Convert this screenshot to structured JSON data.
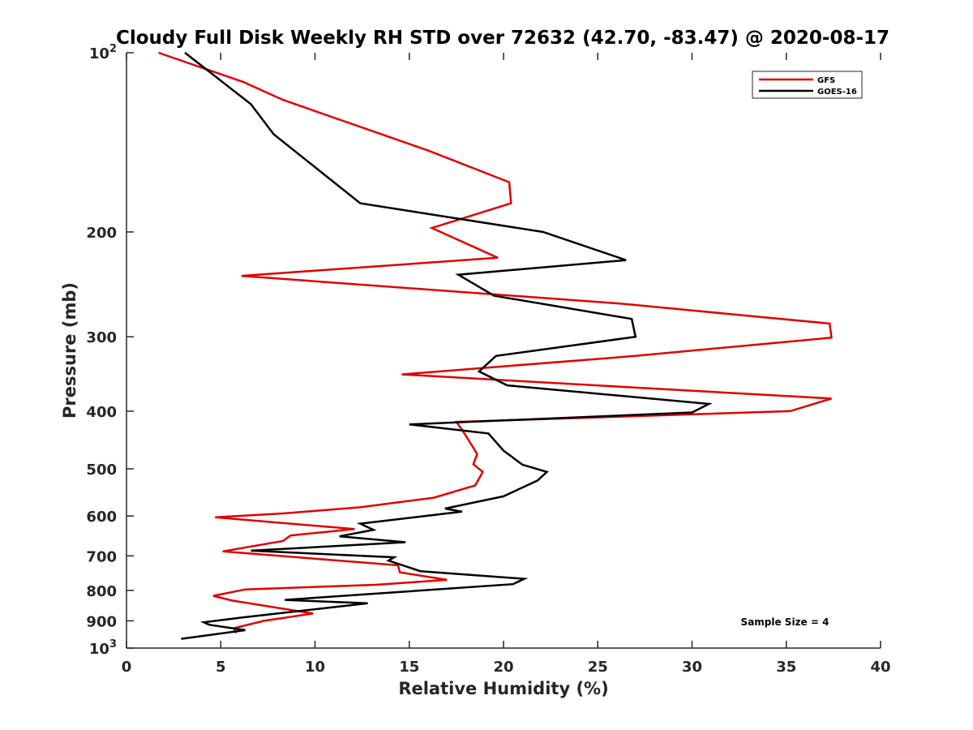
{
  "chart_data": {
    "type": "line",
    "title": "Cloudy Full Disk Weekly RH STD over 72632 (42.70, -83.47) @ 2020-08-17",
    "xlabel": "Relative Humidity (%)",
    "ylabel": "Pressure (mb)",
    "xlim": [
      0,
      40
    ],
    "ylim": [
      100,
      1000
    ],
    "yscale": "log",
    "y_reversed": true,
    "grid": false,
    "legend_position": "top-right",
    "x_ticks": [
      0,
      5,
      10,
      15,
      20,
      25,
      30,
      35,
      40
    ],
    "y_ticks": [
      {
        "value": 100,
        "label": "10",
        "exp": "2"
      },
      {
        "value": 200,
        "label": "200"
      },
      {
        "value": 300,
        "label": "300"
      },
      {
        "value": 400,
        "label": "400"
      },
      {
        "value": 500,
        "label": "500"
      },
      {
        "value": 600,
        "label": "600"
      },
      {
        "value": 700,
        "label": "700"
      },
      {
        "value": 800,
        "label": "800"
      },
      {
        "value": 900,
        "label": "900"
      },
      {
        "value": 1000,
        "label": "10",
        "exp": "3"
      }
    ],
    "annotation": "Sample Size = 4",
    "series": [
      {
        "name": "GFS",
        "color": "#e00000",
        "points": [
          [
            1.7,
            100
          ],
          [
            6.2,
            112
          ],
          [
            8.3,
            120
          ],
          [
            16,
            146
          ],
          [
            20.3,
            165
          ],
          [
            20.4,
            179
          ],
          [
            16.2,
            197
          ],
          [
            19.7,
            221
          ],
          [
            6.1,
            237
          ],
          [
            26.3,
            264
          ],
          [
            37.3,
            285
          ],
          [
            37.4,
            301
          ],
          [
            27,
            323
          ],
          [
            14.6,
            347
          ],
          [
            37.4,
            381
          ],
          [
            35.2,
            400
          ],
          [
            17.5,
            417
          ],
          [
            17.8,
            430
          ],
          [
            18.2,
            450
          ],
          [
            18.6,
            472
          ],
          [
            18.4,
            491
          ],
          [
            18.9,
            506
          ],
          [
            18.5,
            533
          ],
          [
            16.3,
            559
          ],
          [
            12.4,
            580
          ],
          [
            8.3,
            594
          ],
          [
            4.7,
            603
          ],
          [
            12.1,
            631
          ],
          [
            8.7,
            647
          ],
          [
            8.3,
            661
          ],
          [
            5.1,
            688
          ],
          [
            14.4,
            726
          ],
          [
            14.5,
            746
          ],
          [
            17,
            768
          ],
          [
            13.2,
            783
          ],
          [
            6.3,
            797
          ],
          [
            4.6,
            817
          ],
          [
            5.6,
            832
          ],
          [
            9.9,
            875
          ],
          [
            7.3,
            900
          ],
          [
            5.7,
            926
          ],
          [
            5.8,
            944
          ]
        ]
      },
      {
        "name": "GOES-16",
        "color": "#000000",
        "points": [
          [
            3.1,
            100
          ],
          [
            6.6,
            122
          ],
          [
            7.8,
            137
          ],
          [
            12.4,
            179
          ],
          [
            22.1,
            200
          ],
          [
            26.5,
            223
          ],
          [
            17.6,
            236
          ],
          [
            19.5,
            256
          ],
          [
            26.8,
            280
          ],
          [
            27,
            300
          ],
          [
            19.6,
            323
          ],
          [
            18.7,
            343
          ],
          [
            20.2,
            362
          ],
          [
            30.9,
            389
          ],
          [
            30,
            402
          ],
          [
            15,
            421
          ],
          [
            19.2,
            436
          ],
          [
            20,
            466
          ],
          [
            21,
            492
          ],
          [
            22.3,
            506
          ],
          [
            21.8,
            523
          ],
          [
            20,
            556
          ],
          [
            16.9,
            583
          ],
          [
            17.8,
            590
          ],
          [
            12.4,
            618
          ],
          [
            13.1,
            633
          ],
          [
            11.3,
            649
          ],
          [
            14.8,
            664
          ],
          [
            6.6,
            686
          ],
          [
            14.2,
            704
          ],
          [
            13.9,
            713
          ],
          [
            15.6,
            743
          ],
          [
            21.1,
            765
          ],
          [
            20.5,
            781
          ],
          [
            8.4,
            830
          ],
          [
            12.8,
            841
          ],
          [
            6.2,
            888
          ],
          [
            4.1,
            905
          ],
          [
            4.4,
            914
          ],
          [
            6.3,
            933
          ],
          [
            2.9,
            965
          ]
        ]
      }
    ]
  }
}
